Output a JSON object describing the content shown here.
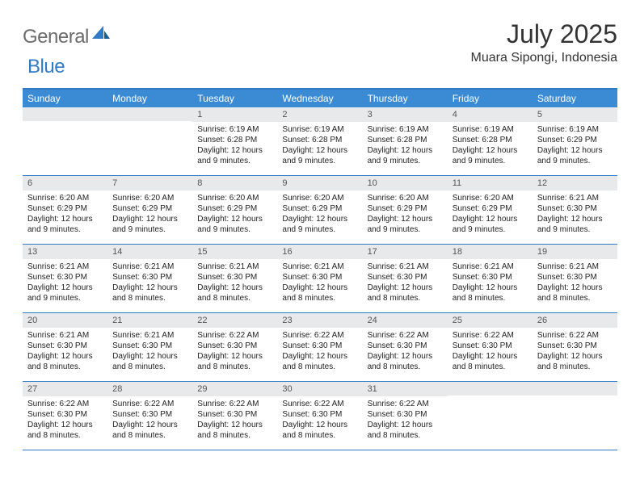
{
  "logo": {
    "general": "General",
    "blue": "Blue"
  },
  "title": "July 2025",
  "location": "Muara Sipongi, Indonesia",
  "colors": {
    "header_bg": "#3b8bd4",
    "border": "#2f7bc4",
    "daynum_bg": "#e7e9eb",
    "logo_gray": "#6b6b6b",
    "logo_blue": "#2f7bc4",
    "text": "#222222",
    "background": "#ffffff"
  },
  "day_headers": [
    "Sunday",
    "Monday",
    "Tuesday",
    "Wednesday",
    "Thursday",
    "Friday",
    "Saturday"
  ],
  "weeks": [
    [
      {
        "blank": true
      },
      {
        "blank": true
      },
      {
        "n": "1",
        "sr": "Sunrise: 6:19 AM",
        "ss": "Sunset: 6:28 PM",
        "dl": "Daylight: 12 hours and 9 minutes."
      },
      {
        "n": "2",
        "sr": "Sunrise: 6:19 AM",
        "ss": "Sunset: 6:28 PM",
        "dl": "Daylight: 12 hours and 9 minutes."
      },
      {
        "n": "3",
        "sr": "Sunrise: 6:19 AM",
        "ss": "Sunset: 6:28 PM",
        "dl": "Daylight: 12 hours and 9 minutes."
      },
      {
        "n": "4",
        "sr": "Sunrise: 6:19 AM",
        "ss": "Sunset: 6:28 PM",
        "dl": "Daylight: 12 hours and 9 minutes."
      },
      {
        "n": "5",
        "sr": "Sunrise: 6:19 AM",
        "ss": "Sunset: 6:29 PM",
        "dl": "Daylight: 12 hours and 9 minutes."
      }
    ],
    [
      {
        "n": "6",
        "sr": "Sunrise: 6:20 AM",
        "ss": "Sunset: 6:29 PM",
        "dl": "Daylight: 12 hours and 9 minutes."
      },
      {
        "n": "7",
        "sr": "Sunrise: 6:20 AM",
        "ss": "Sunset: 6:29 PM",
        "dl": "Daylight: 12 hours and 9 minutes."
      },
      {
        "n": "8",
        "sr": "Sunrise: 6:20 AM",
        "ss": "Sunset: 6:29 PM",
        "dl": "Daylight: 12 hours and 9 minutes."
      },
      {
        "n": "9",
        "sr": "Sunrise: 6:20 AM",
        "ss": "Sunset: 6:29 PM",
        "dl": "Daylight: 12 hours and 9 minutes."
      },
      {
        "n": "10",
        "sr": "Sunrise: 6:20 AM",
        "ss": "Sunset: 6:29 PM",
        "dl": "Daylight: 12 hours and 9 minutes."
      },
      {
        "n": "11",
        "sr": "Sunrise: 6:20 AM",
        "ss": "Sunset: 6:29 PM",
        "dl": "Daylight: 12 hours and 9 minutes."
      },
      {
        "n": "12",
        "sr": "Sunrise: 6:21 AM",
        "ss": "Sunset: 6:30 PM",
        "dl": "Daylight: 12 hours and 9 minutes."
      }
    ],
    [
      {
        "n": "13",
        "sr": "Sunrise: 6:21 AM",
        "ss": "Sunset: 6:30 PM",
        "dl": "Daylight: 12 hours and 9 minutes."
      },
      {
        "n": "14",
        "sr": "Sunrise: 6:21 AM",
        "ss": "Sunset: 6:30 PM",
        "dl": "Daylight: 12 hours and 8 minutes."
      },
      {
        "n": "15",
        "sr": "Sunrise: 6:21 AM",
        "ss": "Sunset: 6:30 PM",
        "dl": "Daylight: 12 hours and 8 minutes."
      },
      {
        "n": "16",
        "sr": "Sunrise: 6:21 AM",
        "ss": "Sunset: 6:30 PM",
        "dl": "Daylight: 12 hours and 8 minutes."
      },
      {
        "n": "17",
        "sr": "Sunrise: 6:21 AM",
        "ss": "Sunset: 6:30 PM",
        "dl": "Daylight: 12 hours and 8 minutes."
      },
      {
        "n": "18",
        "sr": "Sunrise: 6:21 AM",
        "ss": "Sunset: 6:30 PM",
        "dl": "Daylight: 12 hours and 8 minutes."
      },
      {
        "n": "19",
        "sr": "Sunrise: 6:21 AM",
        "ss": "Sunset: 6:30 PM",
        "dl": "Daylight: 12 hours and 8 minutes."
      }
    ],
    [
      {
        "n": "20",
        "sr": "Sunrise: 6:21 AM",
        "ss": "Sunset: 6:30 PM",
        "dl": "Daylight: 12 hours and 8 minutes."
      },
      {
        "n": "21",
        "sr": "Sunrise: 6:21 AM",
        "ss": "Sunset: 6:30 PM",
        "dl": "Daylight: 12 hours and 8 minutes."
      },
      {
        "n": "22",
        "sr": "Sunrise: 6:22 AM",
        "ss": "Sunset: 6:30 PM",
        "dl": "Daylight: 12 hours and 8 minutes."
      },
      {
        "n": "23",
        "sr": "Sunrise: 6:22 AM",
        "ss": "Sunset: 6:30 PM",
        "dl": "Daylight: 12 hours and 8 minutes."
      },
      {
        "n": "24",
        "sr": "Sunrise: 6:22 AM",
        "ss": "Sunset: 6:30 PM",
        "dl": "Daylight: 12 hours and 8 minutes."
      },
      {
        "n": "25",
        "sr": "Sunrise: 6:22 AM",
        "ss": "Sunset: 6:30 PM",
        "dl": "Daylight: 12 hours and 8 minutes."
      },
      {
        "n": "26",
        "sr": "Sunrise: 6:22 AM",
        "ss": "Sunset: 6:30 PM",
        "dl": "Daylight: 12 hours and 8 minutes."
      }
    ],
    [
      {
        "n": "27",
        "sr": "Sunrise: 6:22 AM",
        "ss": "Sunset: 6:30 PM",
        "dl": "Daylight: 12 hours and 8 minutes."
      },
      {
        "n": "28",
        "sr": "Sunrise: 6:22 AM",
        "ss": "Sunset: 6:30 PM",
        "dl": "Daylight: 12 hours and 8 minutes."
      },
      {
        "n": "29",
        "sr": "Sunrise: 6:22 AM",
        "ss": "Sunset: 6:30 PM",
        "dl": "Daylight: 12 hours and 8 minutes."
      },
      {
        "n": "30",
        "sr": "Sunrise: 6:22 AM",
        "ss": "Sunset: 6:30 PM",
        "dl": "Daylight: 12 hours and 8 minutes."
      },
      {
        "n": "31",
        "sr": "Sunrise: 6:22 AM",
        "ss": "Sunset: 6:30 PM",
        "dl": "Daylight: 12 hours and 8 minutes."
      },
      {
        "blank": true
      },
      {
        "blank": true
      }
    ]
  ]
}
